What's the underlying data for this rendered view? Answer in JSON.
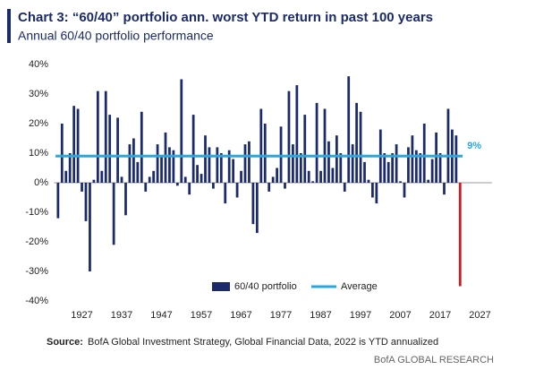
{
  "chart_data": {
    "type": "bar",
    "title": "Chart 3: “60/40” portfolio ann. worst YTD return in past 100 years",
    "subtitle": "Annual 60/40 portfolio performance",
    "source_label": "Source:",
    "source": "BofA Global Investment Strategy, Global Financial Data, 2022  is YTD annualized",
    "brand": "BofA GLOBAL RESEARCH",
    "series": [
      {
        "name": "60/40 portfolio",
        "color": "#1b2a6b",
        "values": [
          -12,
          20,
          4,
          10,
          26,
          25,
          -3,
          -13,
          -30,
          1,
          31,
          4,
          31,
          23,
          -21,
          22,
          2,
          -11,
          13,
          15,
          7,
          24,
          -3,
          2,
          4,
          13,
          9,
          17,
          12,
          11,
          -1,
          35,
          2,
          -4,
          23,
          6,
          3,
          16,
          12,
          -2,
          12,
          10,
          -7,
          11,
          8,
          -5,
          4,
          13,
          14,
          -14,
          -17,
          25,
          20,
          -3,
          2,
          5,
          19,
          -2,
          31,
          13,
          33,
          10,
          23,
          4,
          0.5,
          27,
          4,
          25,
          14,
          5,
          16,
          10,
          -3,
          36,
          13,
          27,
          24,
          7,
          1,
          -5,
          -7,
          18,
          10,
          7,
          10,
          13,
          0.5,
          -5,
          12,
          16,
          11,
          10,
          20,
          1,
          8,
          17,
          10,
          -4,
          25,
          18,
          16,
          -35
        ]
      }
    ],
    "x": [
      1921,
      1922,
      1923,
      1924,
      1925,
      1926,
      1927,
      1928,
      1929,
      1930,
      1931,
      1932,
      1933,
      1934,
      1935,
      1936,
      1937,
      1938,
      1939,
      1940,
      1941,
      1942,
      1943,
      1944,
      1945,
      1946,
      1947,
      1948,
      1949,
      1950,
      1951,
      1952,
      1953,
      1954,
      1955,
      1956,
      1957,
      1958,
      1959,
      1960,
      1961,
      1962,
      1963,
      1964,
      1965,
      1966,
      1967,
      1968,
      1969,
      1970,
      1971,
      1972,
      1973,
      1974,
      1975,
      1976,
      1977,
      1978,
      1979,
      1980,
      1981,
      1982,
      1983,
      1984,
      1985,
      1986,
      1987,
      1988,
      1989,
      1990,
      1991,
      1992,
      1993,
      1994,
      1995,
      1996,
      1997,
      1998,
      1999,
      2000,
      2001,
      2002,
      2003,
      2004,
      2005,
      2006,
      2007,
      2008,
      2009,
      2010,
      2011,
      2012,
      2013,
      2014,
      2015,
      2016,
      2017,
      2018,
      2019,
      2020,
      2021,
      2022
    ],
    "highlight": {
      "x": 2022,
      "color": "#d7191c"
    },
    "average": {
      "name": "Average",
      "value": 9,
      "value_label": "9%",
      "color": "#29a8e0"
    },
    "xlim": [
      1920,
      2030
    ],
    "xticks": [
      1927,
      1937,
      1947,
      1957,
      1967,
      1977,
      1987,
      1997,
      2007,
      2017,
      2027
    ],
    "ylim": [
      -40,
      40
    ],
    "yticks": [
      {
        "value": -40,
        "label": "-40%"
      },
      {
        "value": -30,
        "label": "-30%"
      },
      {
        "value": -20,
        "label": "-20%"
      },
      {
        "value": -10,
        "label": "-10%"
      },
      {
        "value": 0,
        "label": "0%"
      },
      {
        "value": 10,
        "label": "10%"
      },
      {
        "value": 20,
        "label": "20%"
      },
      {
        "value": 30,
        "label": "30%"
      },
      {
        "value": 40,
        "label": "40%"
      }
    ],
    "grid": false,
    "legend": "bottom"
  }
}
